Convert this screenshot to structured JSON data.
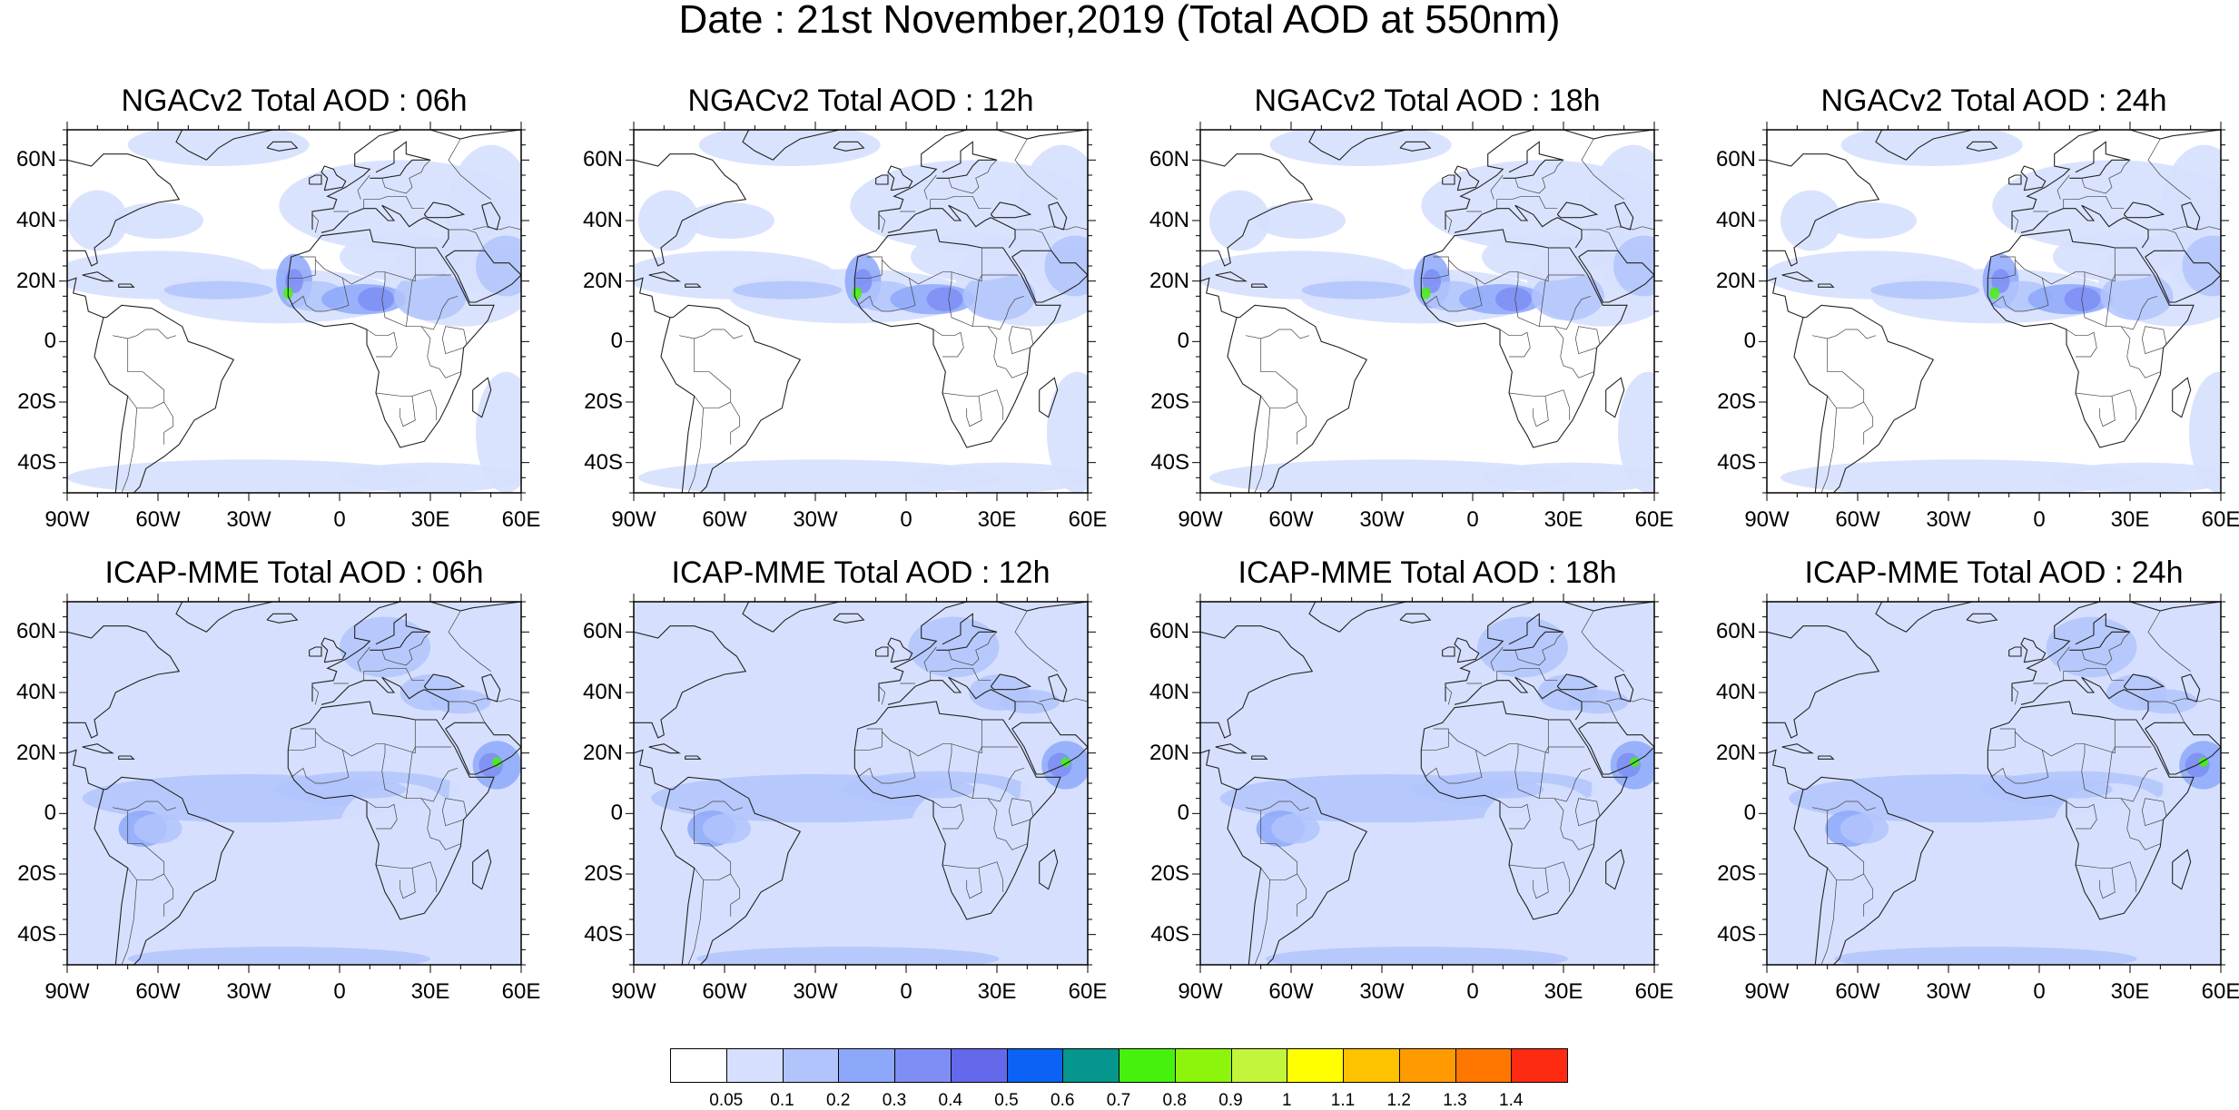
{
  "title": "Date : 21st November,2019 (Total AOD at 550nm)",
  "x_labels": [
    "90W",
    "60W",
    "30W",
    "0",
    "30E",
    "60E"
  ],
  "y_labels": [
    "60N",
    "40N",
    "20N",
    "0",
    "20S",
    "40S"
  ],
  "panels": [
    {
      "title": "NGACv2 Total AOD : 06h",
      "model": "NGACv2",
      "hour": "06h"
    },
    {
      "title": "NGACv2 Total AOD : 12h",
      "model": "NGACv2",
      "hour": "12h"
    },
    {
      "title": "NGACv2 Total AOD : 18h",
      "model": "NGACv2",
      "hour": "18h"
    },
    {
      "title": "NGACv2 Total AOD : 24h",
      "model": "NGACv2",
      "hour": "24h"
    },
    {
      "title": "ICAP-MME Total AOD : 06h",
      "model": "ICAP-MME",
      "hour": "06h"
    },
    {
      "title": "ICAP-MME Total AOD : 12h",
      "model": "ICAP-MME",
      "hour": "12h"
    },
    {
      "title": "ICAP-MME Total AOD : 18h",
      "model": "ICAP-MME",
      "hour": "18h"
    },
    {
      "title": "ICAP-MME Total AOD : 24h",
      "model": "ICAP-MME",
      "hour": "24h"
    }
  ],
  "colorbar": {
    "labels": [
      "0.05",
      "0.1",
      "0.2",
      "0.3",
      "0.4",
      "0.5",
      "0.6",
      "0.7",
      "0.8",
      "0.9",
      "1",
      "1.1",
      "1.2",
      "1.3",
      "1.4"
    ],
    "colors": [
      "#ffffff",
      "#d6e0fe",
      "#b2c4fc",
      "#8da8fa",
      "#7e8ef5",
      "#6468ea",
      "#0b62f4",
      "#05968d",
      "#46f20d",
      "#8cf50b",
      "#c4f53d",
      "#ffff00",
      "#ffc200",
      "#ff9b00",
      "#ff7600",
      "#ff2a12"
    ]
  }
}
